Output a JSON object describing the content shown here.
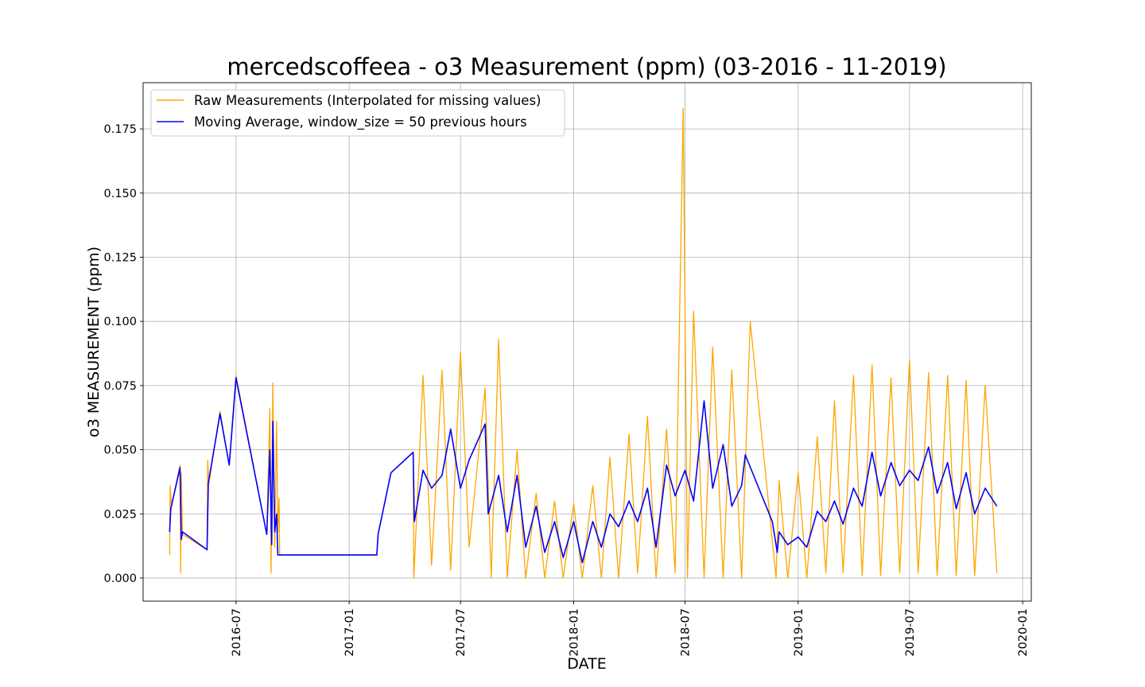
{
  "chart_data": {
    "type": "line",
    "title": "mercedscoffeea - o3 Measurement (ppm) (03-2016 - 11-2019)",
    "xlabel": "DATE",
    "ylabel": "o3 MEASUREMENT (ppm)",
    "xlim": [
      "2016-02-01",
      "2020-01-15"
    ],
    "ylim": [
      -0.009,
      0.193
    ],
    "x_ticks": [
      "2016-07",
      "2017-01",
      "2017-07",
      "2018-01",
      "2018-07",
      "2019-01",
      "2019-07",
      "2020-01"
    ],
    "y_ticks": [
      0.0,
      0.025,
      0.05,
      0.075,
      0.1,
      0.125,
      0.15,
      0.175
    ],
    "y_tick_labels": [
      "0.000",
      "0.025",
      "0.050",
      "0.075",
      "0.100",
      "0.125",
      "0.150",
      "0.175"
    ],
    "grid": true,
    "legend_position": "upper-left",
    "series": [
      {
        "name": "Raw Measurements (Interpolated for missing values)",
        "color": "#FFA500",
        "x": [
          "2016-03-15",
          "2016-03-16",
          "2016-03-18",
          "2016-04-01",
          "2016-04-02",
          "2016-04-03",
          "2016-04-05",
          "2016-05-15",
          "2016-05-16",
          "2016-05-18",
          "2016-06-05",
          "2016-06-20",
          "2016-07-01",
          "2016-08-20",
          "2016-08-25",
          "2016-08-27",
          "2016-08-30",
          "2016-09-02",
          "2016-09-05",
          "2016-09-07",
          "2016-09-09",
          "2016-09-10",
          "2017-02-15",
          "2017-02-17",
          "2017-03-10",
          "2017-04-15",
          "2017-04-16",
          "2017-05-01",
          "2017-05-15",
          "2017-06-01",
          "2017-06-15",
          "2017-07-01",
          "2017-07-15",
          "2017-08-10",
          "2017-08-20",
          "2017-09-01",
          "2017-09-15",
          "2017-10-01",
          "2017-10-15",
          "2017-11-01",
          "2017-11-15",
          "2017-12-01",
          "2017-12-15",
          "2018-01-01",
          "2018-01-15",
          "2018-02-01",
          "2018-02-15",
          "2018-03-01",
          "2018-03-15",
          "2018-04-01",
          "2018-04-15",
          "2018-05-01",
          "2018-05-15",
          "2018-06-01",
          "2018-06-15",
          "2018-06-28",
          "2018-07-05",
          "2018-07-15",
          "2018-08-01",
          "2018-08-15",
          "2018-09-01",
          "2018-09-15",
          "2018-10-01",
          "2018-10-15",
          "2018-11-26",
          "2018-12-01",
          "2018-12-15",
          "2019-01-01",
          "2019-01-15",
          "2019-02-01",
          "2019-02-15",
          "2019-03-01",
          "2019-03-15",
          "2019-04-01",
          "2019-04-15",
          "2019-05-01",
          "2019-05-15",
          "2019-06-01",
          "2019-06-15",
          "2019-07-01",
          "2019-07-15",
          "2019-08-01",
          "2019-08-15",
          "2019-09-01",
          "2019-09-15",
          "2019-10-01",
          "2019-10-15",
          "2019-11-01",
          "2019-11-20"
        ],
        "values": [
          0.009,
          0.036,
          0.028,
          0.044,
          0.002,
          0.041,
          0.017,
          0.011,
          0.046,
          0.037,
          0.065,
          0.044,
          0.079,
          0.017,
          0.066,
          0.002,
          0.076,
          0.012,
          0.061,
          0.018,
          0.031,
          0.009,
          0.009,
          0.017,
          0.041,
          0.049,
          0.0,
          0.079,
          0.005,
          0.081,
          0.003,
          0.088,
          0.012,
          0.074,
          0.0,
          0.093,
          0.0,
          0.05,
          0.0,
          0.033,
          0.0,
          0.03,
          0.0,
          0.029,
          0.0,
          0.036,
          0.0,
          0.047,
          0.0,
          0.056,
          0.002,
          0.063,
          0.0,
          0.058,
          0.002,
          0.183,
          0.0,
          0.104,
          0.0,
          0.09,
          0.0,
          0.081,
          0.0,
          0.1,
          0.0,
          0.038,
          0.0,
          0.041,
          0.0,
          0.055,
          0.002,
          0.069,
          0.002,
          0.079,
          0.001,
          0.083,
          0.001,
          0.078,
          0.002,
          0.085,
          0.002,
          0.08,
          0.001,
          0.079,
          0.001,
          0.077,
          0.001,
          0.075,
          0.002
        ]
      },
      {
        "name": "Moving Average, window_size = 50 previous hours",
        "color": "#0000FF",
        "x": [
          "2016-03-15",
          "2016-03-17",
          "2016-04-01",
          "2016-04-03",
          "2016-04-05",
          "2016-05-15",
          "2016-05-17",
          "2016-06-05",
          "2016-06-20",
          "2016-07-01",
          "2016-08-20",
          "2016-08-25",
          "2016-08-28",
          "2016-08-30",
          "2016-09-02",
          "2016-09-05",
          "2016-09-07",
          "2016-09-10",
          "2017-02-15",
          "2017-02-17",
          "2017-03-10",
          "2017-04-15",
          "2017-04-17",
          "2017-05-01",
          "2017-05-15",
          "2017-06-01",
          "2017-06-15",
          "2017-07-01",
          "2017-07-15",
          "2017-08-10",
          "2017-08-15",
          "2017-09-01",
          "2017-09-15",
          "2017-10-01",
          "2017-10-15",
          "2017-11-01",
          "2017-11-15",
          "2017-12-01",
          "2017-12-15",
          "2018-01-01",
          "2018-01-15",
          "2018-02-01",
          "2018-02-15",
          "2018-03-01",
          "2018-03-15",
          "2018-04-01",
          "2018-04-15",
          "2018-05-01",
          "2018-05-15",
          "2018-06-01",
          "2018-06-15",
          "2018-07-01",
          "2018-07-15",
          "2018-08-01",
          "2018-08-15",
          "2018-09-01",
          "2018-09-15",
          "2018-10-01",
          "2018-10-07",
          "2018-11-20",
          "2018-11-28",
          "2018-12-01",
          "2018-12-15",
          "2019-01-01",
          "2019-01-15",
          "2019-02-01",
          "2019-02-15",
          "2019-03-01",
          "2019-03-15",
          "2019-04-01",
          "2019-04-15",
          "2019-05-01",
          "2019-05-15",
          "2019-06-01",
          "2019-06-15",
          "2019-07-01",
          "2019-07-15",
          "2019-08-01",
          "2019-08-15",
          "2019-09-01",
          "2019-09-15",
          "2019-10-01",
          "2019-10-15",
          "2019-11-01",
          "2019-11-20"
        ],
        "values": [
          0.018,
          0.027,
          0.043,
          0.015,
          0.018,
          0.011,
          0.037,
          0.064,
          0.044,
          0.078,
          0.017,
          0.05,
          0.013,
          0.061,
          0.018,
          0.025,
          0.009,
          0.009,
          0.009,
          0.017,
          0.041,
          0.049,
          0.022,
          0.042,
          0.035,
          0.04,
          0.058,
          0.035,
          0.046,
          0.06,
          0.025,
          0.04,
          0.018,
          0.04,
          0.012,
          0.028,
          0.01,
          0.022,
          0.008,
          0.022,
          0.006,
          0.022,
          0.012,
          0.025,
          0.02,
          0.03,
          0.022,
          0.035,
          0.012,
          0.044,
          0.032,
          0.042,
          0.03,
          0.069,
          0.035,
          0.052,
          0.028,
          0.036,
          0.048,
          0.022,
          0.01,
          0.018,
          0.013,
          0.016,
          0.012,
          0.026,
          0.022,
          0.03,
          0.021,
          0.035,
          0.028,
          0.049,
          0.032,
          0.045,
          0.036,
          0.042,
          0.038,
          0.051,
          0.033,
          0.045,
          0.027,
          0.041,
          0.025,
          0.035,
          0.028
        ]
      }
    ]
  }
}
